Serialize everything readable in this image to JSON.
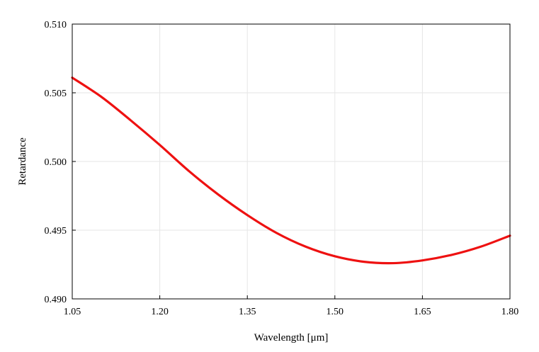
{
  "chart_data": {
    "type": "line",
    "title": "",
    "xlabel": "Wavelength [μm]",
    "ylabel": "Retardance",
    "xlim": [
      1.05,
      1.8
    ],
    "ylim": [
      0.49,
      0.51
    ],
    "xticks": [
      1.05,
      1.2,
      1.35,
      1.5,
      1.65,
      1.8
    ],
    "xtick_labels": [
      "1.05",
      "1.20",
      "1.35",
      "1.50",
      "1.65",
      "1.80"
    ],
    "yticks": [
      0.49,
      0.495,
      0.5,
      0.505,
      0.51
    ],
    "ytick_labels": [
      "0.490",
      "0.495",
      "0.500",
      "0.505",
      "0.510"
    ],
    "grid": true,
    "series": [
      {
        "color": "#ee1111",
        "x": [
          1.05,
          1.1,
          1.15,
          1.2,
          1.25,
          1.3,
          1.35,
          1.4,
          1.45,
          1.5,
          1.55,
          1.6,
          1.65,
          1.7,
          1.75,
          1.8
        ],
        "y": [
          0.5061,
          0.5047,
          0.503,
          0.5012,
          0.4993,
          0.4976,
          0.4961,
          0.4948,
          0.4938,
          0.4931,
          0.4927,
          0.4926,
          0.4928,
          0.4932,
          0.4938,
          0.4946
        ]
      }
    ]
  }
}
